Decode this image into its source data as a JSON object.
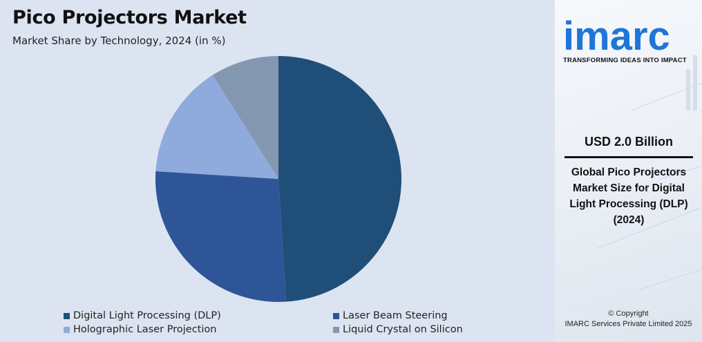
{
  "chart_data": {
    "type": "pie",
    "title": "Pico Projectors Market",
    "subtitle": "Market Share by Technology, 2024 (in %)",
    "slices": [
      {
        "label": "Digital Light Processing (DLP)",
        "value": 49,
        "color": "#1f4e79"
      },
      {
        "label": "Laser Beam Steering",
        "value": 27,
        "color": "#2e5597"
      },
      {
        "label": "Holographic Laser Projection",
        "value": 15,
        "color": "#8faadc"
      },
      {
        "label": "Liquid Crystal on Silicon",
        "value": 9,
        "color": "#8497b0"
      }
    ],
    "legend_position": "bottom"
  },
  "sidebar": {
    "brand": "imarc",
    "tagline": "TRANSFORMING IDEAS INTO IMPACT",
    "brand_color": "#1f75d8",
    "stat_value": "USD 2.0 Billion",
    "stat_description": "Global Pico Projectors Market Size for Digital Light Processing (DLP) (2024)",
    "copyright_line1": "© Copyright",
    "copyright_line2": "IMARC Services Private Limited 2025"
  }
}
